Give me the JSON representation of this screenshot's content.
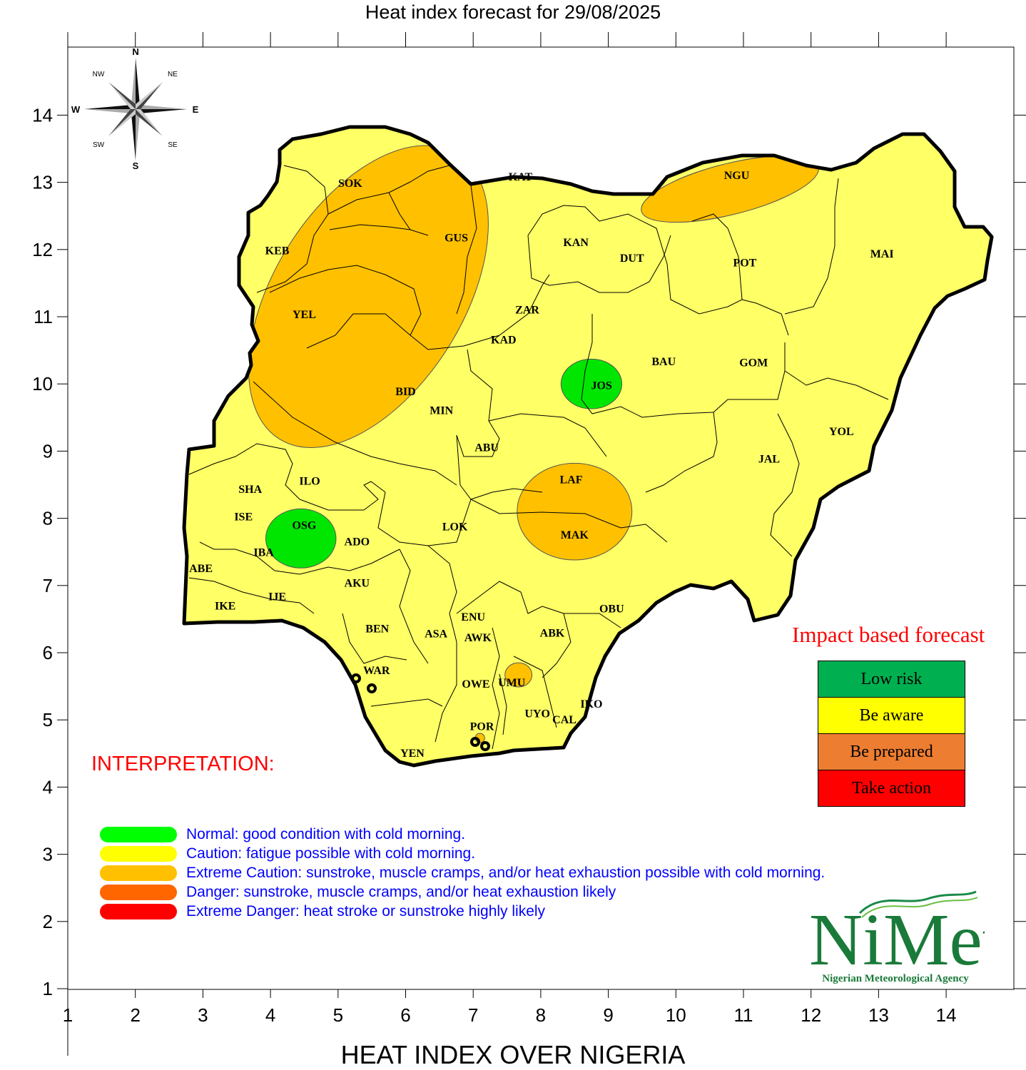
{
  "title": "Heat index forecast for 29/08/2025",
  "xlabel": "HEAT INDEX OVER NIGERIA",
  "axes": {
    "x_ticks": [
      "1",
      "2",
      "3",
      "4",
      "5",
      "6",
      "7",
      "8",
      "9",
      "10",
      "11",
      "12",
      "13",
      "14"
    ],
    "y_ticks": [
      "14",
      "13",
      "12",
      "11",
      "10",
      "9",
      "8",
      "7",
      "6",
      "5",
      "4",
      "3",
      "2",
      "1"
    ]
  },
  "compass": {
    "n": "N",
    "s": "S",
    "e": "E",
    "w": "W",
    "ne": "NE",
    "nw": "NW",
    "se": "SE",
    "sw": "SW"
  },
  "states": [
    {
      "code": "SOK",
      "x": 5.18,
      "y": 12.93
    },
    {
      "code": "KAT",
      "x": 7.7,
      "y": 13.03
    },
    {
      "code": "NGU",
      "x": 10.9,
      "y": 13.05
    },
    {
      "code": "KEB",
      "x": 4.1,
      "y": 11.93
    },
    {
      "code": "GUS",
      "x": 6.75,
      "y": 12.12
    },
    {
      "code": "KAN",
      "x": 8.52,
      "y": 12.05
    },
    {
      "code": "DUT",
      "x": 9.35,
      "y": 11.82
    },
    {
      "code": "POT",
      "x": 11.02,
      "y": 11.75
    },
    {
      "code": "MAI",
      "x": 13.05,
      "y": 11.88
    },
    {
      "code": "YEL",
      "x": 4.5,
      "y": 10.98
    },
    {
      "code": "ZAR",
      "x": 7.8,
      "y": 11.05
    },
    {
      "code": "KAD",
      "x": 7.45,
      "y": 10.6
    },
    {
      "code": "BAU",
      "x": 9.82,
      "y": 10.28
    },
    {
      "code": "GOM",
      "x": 11.15,
      "y": 10.26
    },
    {
      "code": "JOS",
      "x": 8.9,
      "y": 9.92
    },
    {
      "code": "BID",
      "x": 6.0,
      "y": 9.83
    },
    {
      "code": "MIN",
      "x": 6.53,
      "y": 9.55
    },
    {
      "code": "YOL",
      "x": 12.45,
      "y": 9.24
    },
    {
      "code": "ABU",
      "x": 7.2,
      "y": 9.0
    },
    {
      "code": "JAL",
      "x": 11.38,
      "y": 8.83
    },
    {
      "code": "LAF",
      "x": 8.45,
      "y": 8.52
    },
    {
      "code": "SHA",
      "x": 3.7,
      "y": 8.38
    },
    {
      "code": "ILO",
      "x": 4.58,
      "y": 8.5
    },
    {
      "code": "ISE",
      "x": 3.6,
      "y": 7.97
    },
    {
      "code": "OSG",
      "x": 4.5,
      "y": 7.84
    },
    {
      "code": "LOK",
      "x": 6.73,
      "y": 7.82
    },
    {
      "code": "MAK",
      "x": 8.5,
      "y": 7.7
    },
    {
      "code": "ADO",
      "x": 5.28,
      "y": 7.6
    },
    {
      "code": "IBA",
      "x": 3.9,
      "y": 7.44
    },
    {
      "code": "ABE",
      "x": 2.97,
      "y": 7.2
    },
    {
      "code": "AKU",
      "x": 5.28,
      "y": 6.98
    },
    {
      "code": "IJE",
      "x": 4.1,
      "y": 6.78
    },
    {
      "code": "IKE",
      "x": 3.33,
      "y": 6.64
    },
    {
      "code": "ENU",
      "x": 7.0,
      "y": 6.48
    },
    {
      "code": "OBU",
      "x": 9.05,
      "y": 6.6
    },
    {
      "code": "BEN",
      "x": 5.58,
      "y": 6.3
    },
    {
      "code": "ASA",
      "x": 6.45,
      "y": 6.23
    },
    {
      "code": "AWK",
      "x": 7.07,
      "y": 6.17
    },
    {
      "code": "ABK",
      "x": 8.17,
      "y": 6.24
    },
    {
      "code": "WAR",
      "x": 5.57,
      "y": 5.68
    },
    {
      "code": "OWE",
      "x": 7.04,
      "y": 5.48
    },
    {
      "code": "UMU",
      "x": 7.57,
      "y": 5.5
    },
    {
      "code": "IKO",
      "x": 8.75,
      "y": 5.18
    },
    {
      "code": "UYO",
      "x": 7.95,
      "y": 5.04
    },
    {
      "code": "CAL",
      "x": 8.35,
      "y": 4.95
    },
    {
      "code": "POR",
      "x": 7.13,
      "y": 4.85
    },
    {
      "code": "YEN",
      "x": 6.1,
      "y": 4.45
    }
  ],
  "hazard_zones": [
    {
      "category": "extreme_caution",
      "color": "#ffc000",
      "center": [
        5.45,
        11.3
      ],
      "radii": [
        1.4,
        2.5
      ],
      "rotation": 32
    },
    {
      "category": "extreme_caution",
      "color": "#ffc000",
      "center": [
        10.8,
        12.9
      ],
      "radii": [
        1.35,
        0.38
      ],
      "rotation": -14
    },
    {
      "category": "extreme_caution",
      "color": "#ffc000",
      "center": [
        8.5,
        8.1
      ],
      "radii": [
        0.85,
        0.72
      ],
      "rotation": 0
    },
    {
      "category": "extreme_caution",
      "color": "#ffc000",
      "center": [
        7.67,
        5.67
      ],
      "radii": [
        0.2,
        0.18
      ],
      "rotation": 0
    },
    {
      "category": "extreme_caution",
      "color": "#ffc000",
      "center": [
        7.1,
        4.73
      ],
      "radii": [
        0.07,
        0.07
      ],
      "rotation": 0
    },
    {
      "category": "normal",
      "color": "#00e600",
      "center": [
        8.75,
        10.0
      ],
      "radii": [
        0.45,
        0.37
      ],
      "rotation": 0
    },
    {
      "category": "normal",
      "color": "#00e600",
      "center": [
        4.45,
        7.7
      ],
      "radii": [
        0.52,
        0.44
      ],
      "rotation": 0
    }
  ],
  "interpretation": {
    "title": "INTERPRETATION:",
    "items": [
      {
        "color": "#00ff00",
        "text": "Normal: good condition with cold morning."
      },
      {
        "color": "#ffff00",
        "text": "Caution: fatigue possible  with cold morning."
      },
      {
        "color": "#ffc000",
        "text": "Extreme Caution: sunstroke, muscle cramps, and/or heat exhaustion possible  with cold morning."
      },
      {
        "color": "#ff6600",
        "text": "Danger: sunstroke, muscle cramps, and/or heat exhaustion likely"
      },
      {
        "color": "#ff0000",
        "text": "Extreme Danger: heat stroke or sunstroke highly likely"
      }
    ]
  },
  "impact_forecast": {
    "title": "Impact based forecast",
    "levels": [
      {
        "label": "Low risk",
        "color": "#00b050"
      },
      {
        "label": "Be aware",
        "color": "#ffff00"
      },
      {
        "label": "Be prepared",
        "color": "#ed7d31"
      },
      {
        "label": "Take action",
        "color": "#ff0000"
      }
    ]
  },
  "logo": {
    "name": "NiMet",
    "subtitle": "Nigerian Meteorological Agency"
  },
  "colors": {
    "map_fill": "#ffff66",
    "border": "#000000"
  }
}
